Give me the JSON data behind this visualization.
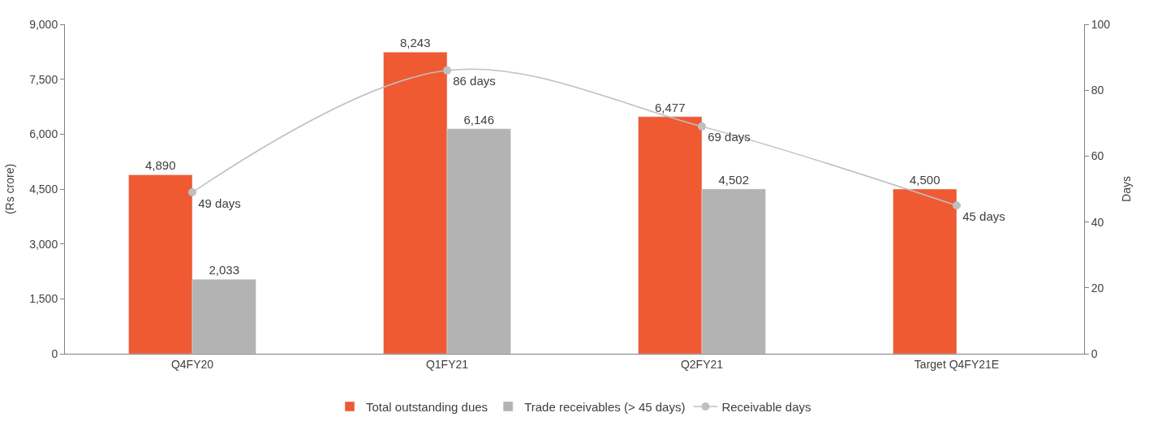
{
  "chart_data": {
    "type": "bar",
    "ylabel": "(Rs crore)",
    "y2label": "Days",
    "categories": [
      "Q4FY20",
      "Q1FY21",
      "Q2FY21",
      "Target Q4FY21E"
    ],
    "series": [
      {
        "name": "Total outstanding dues",
        "color": "#ef5a32",
        "values": [
          4890,
          8243,
          6477,
          4500
        ],
        "value_labels": [
          "4,890",
          "8,243",
          "6,477",
          "4,500"
        ]
      },
      {
        "name": "Trade receivables (> 45 days)",
        "color": "#b3b3b3",
        "values": [
          2033,
          6146,
          4502,
          null
        ],
        "value_labels": [
          "2,033",
          "6,146",
          "4,502",
          null
        ]
      },
      {
        "name": "Receivable days",
        "type": "line",
        "axis": "y2",
        "color": "#bfbfbf",
        "values": [
          49,
          86,
          69,
          45
        ],
        "value_labels": [
          "49 days",
          "86 days",
          "69 days",
          "45 days"
        ],
        "marker": "circle"
      }
    ],
    "ylim": [
      0,
      9000
    ],
    "yticks": [
      0,
      {
        "value": 1500,
        "label": "1,500"
      },
      {
        "value": 3000,
        "label": "3,000"
      },
      {
        "value": 4500,
        "label": "4,500"
      },
      {
        "value": 6000,
        "label": "6,000"
      },
      {
        "value": 7500,
        "label": "7,500"
      },
      {
        "value": 9000,
        "label": "9,000"
      }
    ],
    "y2lim": [
      0,
      100
    ],
    "y2ticks": [
      0,
      20,
      40,
      60,
      80,
      100
    ],
    "legend": "bottom"
  }
}
